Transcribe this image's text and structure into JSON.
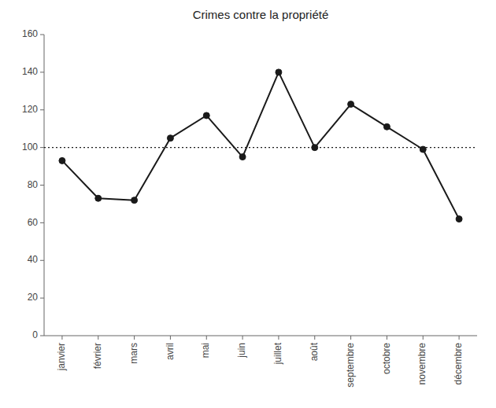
{
  "chart_data": {
    "type": "line",
    "title": "Crimes contre la propriété",
    "categories": [
      "janvier",
      "février",
      "mars",
      "avril",
      "mai",
      "juin",
      "juillet",
      "août",
      "septembre",
      "octobre",
      "novembre",
      "décembre"
    ],
    "values": [
      93,
      73,
      72,
      105,
      117,
      95,
      140,
      100,
      123,
      111,
      99,
      62
    ],
    "color": "#1a1a1a",
    "marker": "circle",
    "hline": 100,
    "ylim": [
      0,
      160
    ],
    "yticks": [
      0,
      20,
      40,
      60,
      80,
      100,
      120,
      140,
      160
    ],
    "grid": false
  }
}
